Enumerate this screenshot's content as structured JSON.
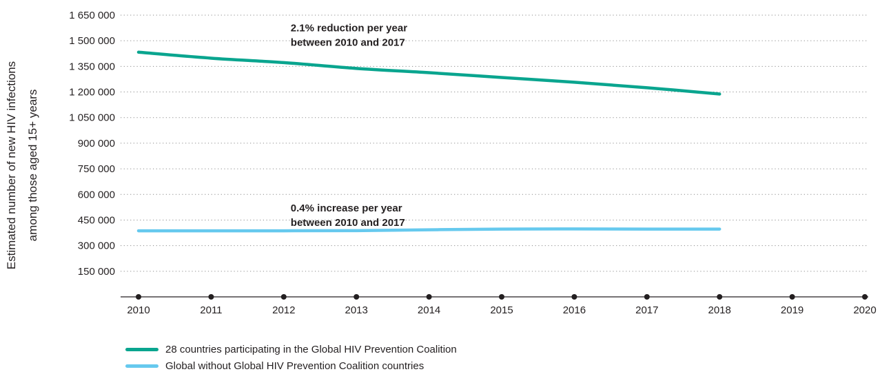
{
  "chart_data": {
    "type": "line",
    "ylabel_lines": [
      "Estimated number of new HIV infections",
      "among those aged 15+ years"
    ],
    "x": [
      2010,
      2011,
      2012,
      2013,
      2014,
      2015,
      2016,
      2017,
      2018,
      2019,
      2020
    ],
    "x_tick_labels": [
      "2010",
      "2011",
      "2012",
      "2013",
      "2014",
      "2015",
      "2016",
      "2017",
      "2018",
      "2019",
      "2020"
    ],
    "y_ticks": [
      150000,
      300000,
      450000,
      600000,
      750000,
      900000,
      1050000,
      1200000,
      1350000,
      1500000,
      1650000
    ],
    "y_tick_labels": [
      "150 000",
      "300 000",
      "450 000",
      "600 000",
      "750 000",
      "900 000",
      "1 050 000",
      "1 200 000",
      "1 350 000",
      "1 500 000",
      "1 650 000"
    ],
    "ylim": [
      0,
      1650000
    ],
    "xlim": [
      2010,
      2020
    ],
    "grid": true,
    "series": [
      {
        "name": "28 countries participating in the Global HIV Prevention Coalition",
        "color": "#0aa58f",
        "x": [
          2010,
          2011,
          2012,
          2013,
          2014,
          2015,
          2016,
          2017,
          2018
        ],
        "values": [
          1433000,
          1398000,
          1372000,
          1338000,
          1313000,
          1285000,
          1257000,
          1225000,
          1188000
        ]
      },
      {
        "name": "Global without Global HIV Prevention Coalition countries",
        "color": "#66c9ee",
        "x": [
          2010,
          2011,
          2012,
          2013,
          2014,
          2015,
          2016,
          2017,
          2018
        ],
        "values": [
          387000,
          387000,
          387000,
          388000,
          393000,
          397000,
          398000,
          397000,
          397000
        ]
      }
    ],
    "annotations": [
      {
        "lines": [
          "2.1% reduction per year",
          "between 2010 and 2017"
        ],
        "x": 2012,
        "y": 1555000
      },
      {
        "lines": [
          "0.4% increase per year",
          "between 2010 and 2017"
        ],
        "x": 2012,
        "y": 500000
      }
    ]
  }
}
